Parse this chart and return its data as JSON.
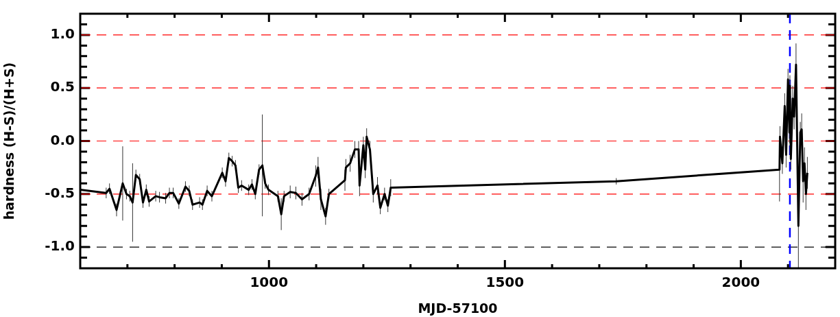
{
  "chart_data": {
    "type": "line",
    "xlabel": "MJD-57100",
    "ylabel": "hardness (H-S)/(H+S)",
    "xlim": [
      600,
      2200
    ],
    "ylim": [
      -1.2,
      1.2
    ],
    "xticks": [
      {
        "value": 700,
        "label": null
      },
      {
        "value": 800,
        "label": null
      },
      {
        "value": 900,
        "label": null
      },
      1000,
      {
        "value": 1100,
        "label": null
      },
      {
        "value": 1200,
        "label": null
      },
      {
        "value": 1300,
        "label": null
      },
      {
        "value": 1400,
        "label": null
      },
      1500,
      {
        "value": 1600,
        "label": null
      },
      {
        "value": 1700,
        "label": null
      },
      {
        "value": 1800,
        "label": null
      },
      {
        "value": 1900,
        "label": null
      },
      2000,
      {
        "value": 2100,
        "label": null
      }
    ],
    "yticks": [
      {
        "value": -1.1,
        "label": null
      },
      {
        "value": -1,
        "label": "-1.0"
      },
      {
        "value": -0.9,
        "label": null
      },
      {
        "value": -0.8,
        "label": null
      },
      {
        "value": -0.7,
        "label": null
      },
      {
        "value": -0.6,
        "label": null
      },
      {
        "value": -0.5,
        "label": "-0.5"
      },
      {
        "value": -0.4,
        "label": null
      },
      {
        "value": -0.3,
        "label": null
      },
      {
        "value": -0.2,
        "label": null
      },
      {
        "value": -0.1,
        "label": null
      },
      {
        "value": 0,
        "label": "0.0"
      },
      {
        "value": 0.1,
        "label": null
      },
      {
        "value": 0.2,
        "label": null
      },
      {
        "value": 0.3,
        "label": null
      },
      {
        "value": 0.4,
        "label": null
      },
      {
        "value": 0.5,
        "label": "0.5"
      },
      {
        "value": 0.6,
        "label": null
      },
      {
        "value": 0.7,
        "label": null
      },
      {
        "value": 0.8,
        "label": null
      },
      {
        "value": 0.9,
        "label": null
      },
      {
        "value": 1,
        "label": "1.0"
      },
      {
        "value": 1.1,
        "label": null
      }
    ],
    "grid": false,
    "legend": false,
    "marker": "none",
    "line_style": "solid",
    "ref_lines": [
      {
        "axis": "y",
        "value": -1,
        "color": "#000000",
        "line_style": "dashed"
      },
      {
        "axis": "y",
        "value": -0.5,
        "color": "#ff0000",
        "line_style": "dashed"
      },
      {
        "axis": "y",
        "value": 0,
        "color": "#ff0000",
        "line_style": "dashed"
      },
      {
        "axis": "y",
        "value": 0.5,
        "color": "#ff0000",
        "line_style": "dashed"
      },
      {
        "axis": "y",
        "value": 1,
        "color": "#ff0000",
        "line_style": "dashed"
      },
      {
        "axis": "x",
        "value": 2104,
        "color": "#0000ff",
        "line_style": "dashed"
      }
    ],
    "series": [
      {
        "color": "#000000",
        "x": [
          600,
          655,
          662,
          677,
          690,
          698,
          705,
          711,
          718,
          726,
          733,
          740,
          746,
          760,
          768,
          781,
          789,
          797,
          809,
          823,
          831,
          838,
          853,
          859,
          869,
          879,
          901,
          908,
          915,
          922,
          929,
          935,
          942,
          957,
          964,
          971,
          979,
          986,
          992,
          999,
          1019,
          1026,
          1032,
          1045,
          1057,
          1070,
          1085,
          1099,
          1104,
          1110,
          1120,
          1127,
          1161,
          1163,
          1172,
          1182,
          1190,
          1192,
          1200,
          1204,
          1207,
          1214,
          1221,
          1230,
          1236,
          1245,
          1252,
          1258,
          1736,
          2082,
          2083,
          2088,
          2093,
          2096,
          2100,
          2103,
          2104,
          2106,
          2110,
          2113,
          2117,
          2122,
          2126,
          2129,
          2132,
          2135,
          2138,
          2141
        ],
        "values": [
          -0.46,
          -0.49,
          -0.45,
          -0.65,
          -0.4,
          -0.5,
          -0.52,
          -0.58,
          -0.32,
          -0.36,
          -0.58,
          -0.46,
          -0.57,
          -0.52,
          -0.53,
          -0.54,
          -0.49,
          -0.49,
          -0.59,
          -0.43,
          -0.47,
          -0.6,
          -0.58,
          -0.6,
          -0.47,
          -0.52,
          -0.3,
          -0.38,
          -0.16,
          -0.19,
          -0.23,
          -0.44,
          -0.42,
          -0.46,
          -0.41,
          -0.5,
          -0.27,
          -0.23,
          -0.4,
          -0.46,
          -0.52,
          -0.69,
          -0.52,
          -0.48,
          -0.49,
          -0.55,
          -0.5,
          -0.33,
          -0.25,
          -0.55,
          -0.71,
          -0.5,
          -0.37,
          -0.25,
          -0.21,
          -0.08,
          -0.08,
          -0.42,
          -0.04,
          -0.27,
          0.04,
          -0.08,
          -0.5,
          -0.42,
          -0.63,
          -0.5,
          -0.61,
          -0.44,
          -0.38,
          -0.27,
          0.04,
          -0.21,
          0.33,
          -0.13,
          0.58,
          0.08,
          0.52,
          -0.17,
          0.4,
          0.23,
          0.72,
          -0.8,
          0.08,
          0.11,
          -0.38,
          -0.21,
          -0.5,
          -0.3
        ],
        "errors": [
          null,
          0.05,
          0.05,
          0.06,
          0.35,
          0.05,
          0.05,
          0.37,
          0.05,
          0.05,
          0.05,
          0.05,
          0.05,
          0.05,
          0.05,
          0.05,
          0.05,
          0.05,
          0.05,
          0.05,
          0.05,
          0.05,
          0.05,
          0.05,
          0.05,
          0.05,
          0.05,
          0.05,
          0.05,
          0.05,
          0.05,
          0.05,
          0.05,
          0.05,
          0.05,
          0.05,
          0.05,
          0.48,
          0.05,
          0.05,
          0.05,
          0.15,
          0.05,
          0.06,
          0.06,
          0.06,
          0.06,
          0.1,
          0.1,
          0.1,
          0.08,
          0.05,
          0.1,
          0.08,
          0.08,
          0.08,
          0.08,
          0.1,
          0.08,
          0.08,
          0.08,
          0.08,
          0.08,
          0.08,
          0.06,
          0.06,
          0.06,
          0.08,
          0.03,
          0.3,
          0.1,
          0.1,
          0.12,
          0.12,
          0.1,
          0.1,
          0.1,
          0.1,
          0.12,
          0.12,
          0.2,
          0.4,
          0.1,
          0.15,
          0.2,
          0.15,
          0.15,
          0.15
        ]
      }
    ]
  }
}
